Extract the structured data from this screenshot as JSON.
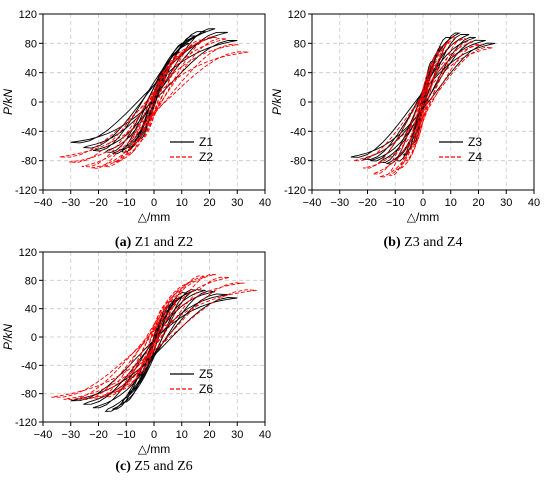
{
  "chart_data": [
    {
      "id": "a",
      "type": "line",
      "caption": {
        "letter": "(a)",
        "text": "Z1 and Z2"
      },
      "xlabel": "△/mm",
      "ylabel": "P/kN",
      "xlim": [
        -40,
        40
      ],
      "ylim": [
        -120,
        120
      ],
      "xticks": [
        -40,
        -30,
        -20,
        -10,
        0,
        10,
        20,
        30,
        40
      ],
      "yticks": [
        -120,
        -80,
        -40,
        0,
        40,
        80,
        120
      ],
      "grid": true,
      "legend_position": "bottom-right",
      "series": [
        {
          "name": "Z1",
          "color": "#000000",
          "style": "solid",
          "amplitudes": [
            3,
            6,
            9,
            12,
            15,
            18,
            22,
            26,
            30
          ],
          "peaks_pos": [
            30,
            52,
            68,
            80,
            90,
            96,
            100,
            95,
            84
          ],
          "peaks_neg": [
            -30,
            -50,
            -62,
            -68,
            -70,
            -68,
            -66,
            -62,
            -55
          ]
        },
        {
          "name": "Z2",
          "color": "#ff0000",
          "style": "dashed",
          "amplitudes": [
            3,
            6,
            10,
            14,
            18,
            22,
            26,
            30,
            34
          ],
          "peaks_pos": [
            28,
            48,
            64,
            76,
            84,
            88,
            86,
            78,
            68
          ],
          "peaks_neg": [
            -30,
            -55,
            -72,
            -82,
            -88,
            -90,
            -88,
            -82,
            -75
          ]
        }
      ]
    },
    {
      "id": "b",
      "type": "line",
      "caption": {
        "letter": "(b)",
        "text": "Z3 and Z4"
      },
      "xlabel": "△/mm",
      "ylabel": "P/kN",
      "xlim": [
        -40,
        40
      ],
      "ylim": [
        -120,
        120
      ],
      "xticks": [
        -40,
        -30,
        -20,
        -10,
        0,
        10,
        20,
        30,
        40
      ],
      "yticks": [
        -120,
        -80,
        -40,
        0,
        40,
        80,
        120
      ],
      "grid": true,
      "legend_position": "bottom-right",
      "series": [
        {
          "name": "Z3",
          "color": "#000000",
          "style": "solid",
          "amplitudes": [
            2,
            4,
            7,
            10,
            13,
            16,
            19,
            22,
            26
          ],
          "peaks_pos": [
            30,
            55,
            75,
            88,
            94,
            92,
            88,
            84,
            80
          ],
          "peaks_neg": [
            -30,
            -55,
            -72,
            -80,
            -84,
            -82,
            -80,
            -78,
            -75
          ]
        },
        {
          "name": "Z4",
          "color": "#ff0000",
          "style": "dashed",
          "amplitudes": [
            2,
            4,
            6,
            9,
            12,
            15,
            18,
            21,
            25
          ],
          "peaks_pos": [
            28,
            50,
            68,
            80,
            88,
            86,
            82,
            78,
            74
          ],
          "peaks_neg": [
            -32,
            -60,
            -80,
            -92,
            -100,
            -102,
            -98,
            -90,
            -80
          ]
        }
      ]
    },
    {
      "id": "c",
      "type": "line",
      "caption": {
        "letter": "(c)",
        "text": "Z5 and Z6"
      },
      "xlabel": "△/mm",
      "ylabel": "P/kN",
      "xlim": [
        -40,
        40
      ],
      "ylim": [
        -120,
        120
      ],
      "xticks": [
        -40,
        -30,
        -20,
        -10,
        0,
        10,
        20,
        30,
        40
      ],
      "yticks": [
        -120,
        -80,
        -40,
        0,
        40,
        80,
        120
      ],
      "grid": true,
      "legend_position": "bottom-right",
      "series": [
        {
          "name": "Z5",
          "color": "#000000",
          "style": "solid",
          "amplitudes": [
            3,
            6,
            9,
            12,
            15,
            18,
            22,
            26,
            30
          ],
          "peaks_pos": [
            25,
            42,
            54,
            62,
            66,
            66,
            64,
            60,
            55
          ],
          "peaks_neg": [
            -32,
            -58,
            -78,
            -92,
            -102,
            -105,
            -100,
            -95,
            -90
          ]
        },
        {
          "name": "Z6",
          "color": "#ff0000",
          "style": "dashed",
          "amplitudes": [
            3,
            6,
            10,
            14,
            18,
            22,
            27,
            32,
            37
          ],
          "peaks_pos": [
            28,
            50,
            66,
            78,
            86,
            88,
            84,
            76,
            66
          ],
          "peaks_neg": [
            -30,
            -52,
            -68,
            -78,
            -84,
            -86,
            -88,
            -88,
            -85
          ]
        }
      ]
    }
  ]
}
